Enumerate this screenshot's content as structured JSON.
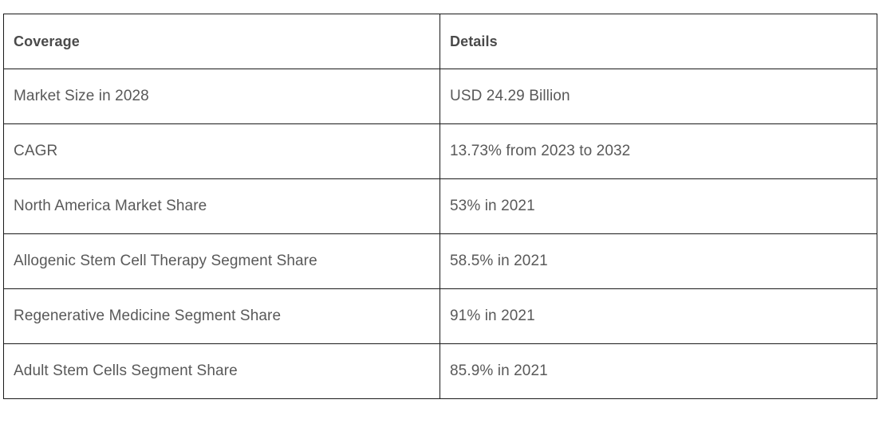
{
  "table": {
    "headers": [
      "Coverage",
      "Details"
    ],
    "rows": [
      [
        "Market Size in 2028",
        "USD 24.29 Billion"
      ],
      [
        "CAGR",
        "13.73% from 2023 to 2032"
      ],
      [
        "North America Market Share",
        "53% in 2021"
      ],
      [
        "Allogenic Stem Cell Therapy Segment Share",
        "58.5% in 2021"
      ],
      [
        "Regenerative Medicine Segment Share",
        "91% in 2021"
      ],
      [
        "Adult Stem Cells Segment Share",
        "85.9% in 2021"
      ]
    ]
  }
}
